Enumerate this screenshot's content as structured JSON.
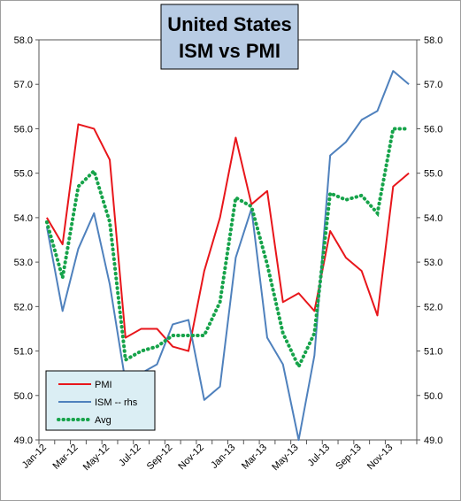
{
  "chart_data": {
    "type": "line",
    "title_lines": [
      "United States",
      "ISM vs PMI"
    ],
    "ylim_left": [
      49.0,
      58.0
    ],
    "ylim_right": [
      49.0,
      58.0
    ],
    "y_ticks": [
      "49.0",
      "50.0",
      "51.0",
      "52.0",
      "53.0",
      "54.0",
      "55.0",
      "56.0",
      "57.0",
      "58.0"
    ],
    "x": [
      "Jan-12",
      "Feb-12",
      "Mar-12",
      "Apr-12",
      "May-12",
      "Jun-12",
      "Jul-12",
      "Aug-12",
      "Sep-12",
      "Oct-12",
      "Nov-12",
      "Dec-12",
      "Jan-13",
      "Feb-13",
      "Mar-13",
      "Apr-13",
      "May-13",
      "Jun-13",
      "Jul-13",
      "Aug-13",
      "Sep-13",
      "Oct-13",
      "Nov-13",
      "Dec-13"
    ],
    "x_tick_labels": [
      "Jan-12",
      "Mar-12",
      "May-12",
      "Jul-12",
      "Sep-12",
      "Nov-12",
      "Jan-13",
      "Mar-13",
      "May-13",
      "Jul-13",
      "Sep-13",
      "Nov-13"
    ],
    "series": [
      {
        "name": "PMI",
        "color": "#e8161b",
        "style": "solid",
        "values": [
          54.0,
          53.4,
          56.1,
          56.0,
          55.3,
          51.3,
          51.5,
          51.5,
          51.1,
          51.0,
          52.8,
          54.0,
          55.8,
          54.3,
          54.6,
          52.1,
          52.3,
          51.9,
          53.7,
          53.1,
          52.8,
          51.8,
          54.7,
          55.0
        ]
      },
      {
        "name": "ISM -- rhs",
        "color": "#4f81bd",
        "style": "solid",
        "values": [
          53.8,
          51.9,
          53.3,
          54.1,
          52.5,
          50.3,
          50.5,
          50.7,
          51.6,
          51.7,
          49.9,
          50.2,
          53.1,
          54.2,
          51.3,
          50.7,
          49.0,
          50.9,
          55.4,
          55.7,
          56.2,
          56.4,
          57.3,
          57.0
        ]
      },
      {
        "name": "Avg",
        "color": "#16a34a",
        "style": "dotted",
        "values": [
          53.9,
          52.65,
          54.7,
          55.05,
          53.9,
          50.8,
          51.0,
          51.1,
          51.35,
          51.35,
          51.35,
          52.1,
          54.45,
          54.25,
          52.95,
          51.4,
          50.65,
          51.4,
          54.55,
          54.4,
          54.5,
          54.1,
          56.0,
          56.0
        ]
      }
    ],
    "legend_position": "bottom-left"
  }
}
